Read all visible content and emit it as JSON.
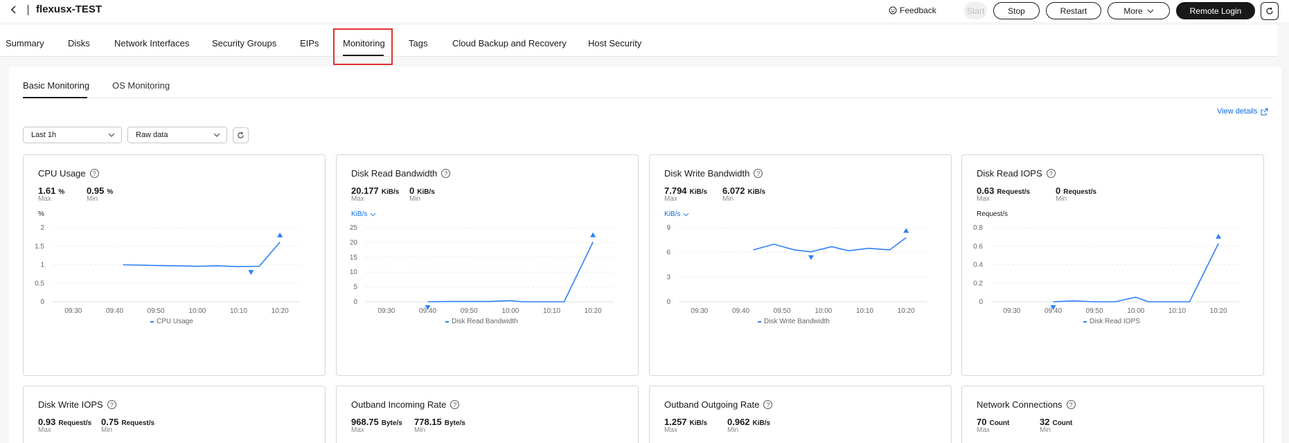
{
  "header": {
    "title": "flexusx-TEST",
    "feedback": "Feedback",
    "buttons": {
      "start": "Start",
      "stop": "Stop",
      "restart": "Restart",
      "more": "More",
      "remote_login": "Remote Login"
    }
  },
  "tabs": [
    "Summary",
    "Disks",
    "Network Interfaces",
    "Security Groups",
    "EIPs",
    "Monitoring",
    "Tags",
    "Cloud Backup and Recovery",
    "Host Security"
  ],
  "active_tab": "Monitoring",
  "subtabs": [
    "Basic Monitoring",
    "OS Monitoring"
  ],
  "view_details": "View details",
  "filters": {
    "range": "Last 1h",
    "mode": "Raw data"
  },
  "colors": {
    "accent": "#0d6ae1",
    "line": "#2d7ff9",
    "highlight": "#e23131"
  },
  "cards": [
    {
      "title": "CPU Usage",
      "max": "1.61",
      "max_unit": "%",
      "max_label": "Max",
      "min": "0.95",
      "min_unit": "%",
      "min_label": "Min",
      "unit": "%",
      "unit_dropdown": false,
      "legend": "CPU Usage"
    },
    {
      "title": "Disk Read Bandwidth",
      "max": "20.177",
      "max_unit": "KiB/s",
      "max_label": "Max",
      "min": "0",
      "min_unit": "KiB/s",
      "min_label": "Min",
      "unit": "KiB/s",
      "unit_dropdown": true,
      "legend": "Disk Read Bandwidth"
    },
    {
      "title": "Disk Write Bandwidth",
      "max": "7.794",
      "max_unit": "KiB/s",
      "max_label": "Max",
      "min": "6.072",
      "min_unit": "KiB/s",
      "min_label": "Min",
      "unit": "KiB/s",
      "unit_dropdown": true,
      "legend": "Disk Write Bandwidth"
    },
    {
      "title": "Disk Read IOPS",
      "max": "0.63",
      "max_unit": "Request/s",
      "max_label": "Max",
      "min": "0",
      "min_unit": "Request/s",
      "min_label": "Min",
      "unit": "Request/s",
      "unit_dropdown": false,
      "legend": "Disk Read IOPS"
    },
    {
      "title": "Disk Write IOPS",
      "max": "0.93",
      "max_unit": "Request/s",
      "max_label": "Max",
      "min": "0.75",
      "min_unit": "Request/s",
      "min_label": "Min"
    },
    {
      "title": "Outband Incoming Rate",
      "max": "968.75",
      "max_unit": "Byte/s",
      "max_label": "Max",
      "min": "778.15",
      "min_unit": "Byte/s",
      "min_label": "Min"
    },
    {
      "title": "Outband Outgoing Rate",
      "max": "1.257",
      "max_unit": "KiB/s",
      "max_label": "Max",
      "min": "0.962",
      "min_unit": "KiB/s",
      "min_label": "Min"
    },
    {
      "title": "Network Connections",
      "max": "70",
      "max_unit": "Count",
      "max_label": "Max",
      "min": "32",
      "min_unit": "Count",
      "min_label": "Min"
    }
  ],
  "chart_data": [
    {
      "type": "line",
      "title": "CPU Usage",
      "ylabel": "%",
      "x_ticks": [
        "09:30",
        "09:40",
        "09:50",
        "10:00",
        "10:10",
        "10:20"
      ],
      "y_ticks": [
        "0",
        "0.5",
        "1",
        "1.5",
        "2"
      ],
      "ylim": [
        0,
        2
      ],
      "series": [
        {
          "name": "CPU Usage",
          "x": [
            "09:42",
            "09:50",
            "09:55",
            "10:00",
            "10:05",
            "10:10",
            "10:15",
            "10:20"
          ],
          "values": [
            1.0,
            0.98,
            0.97,
            0.96,
            0.97,
            0.95,
            0.96,
            1.61
          ]
        }
      ],
      "markers": {
        "max": {
          "x": "10:20",
          "y": 1.61
        },
        "min": {
          "x": "10:13",
          "y": 0.95
        }
      }
    },
    {
      "type": "line",
      "title": "Disk Read Bandwidth",
      "ylabel": "KiB/s",
      "x_ticks": [
        "09:30",
        "09:40",
        "09:50",
        "10:00",
        "10:10",
        "10:20"
      ],
      "y_ticks": [
        "0",
        "5",
        "10",
        "15",
        "20",
        "25"
      ],
      "ylim": [
        0,
        25
      ],
      "series": [
        {
          "name": "Disk Read Bandwidth",
          "x": [
            "09:40",
            "09:45",
            "09:50",
            "09:55",
            "10:00",
            "10:03",
            "10:08",
            "10:13",
            "10:20"
          ],
          "values": [
            0.0,
            0.1,
            0.1,
            0.1,
            0.4,
            0.0,
            0.0,
            0.0,
            20.177
          ]
        }
      ],
      "markers": {
        "max": {
          "x": "10:20",
          "y": 20.177
        },
        "min": {
          "x": "09:40",
          "y": 0
        }
      }
    },
    {
      "type": "line",
      "title": "Disk Write Bandwidth",
      "ylabel": "KiB/s",
      "x_ticks": [
        "09:30",
        "09:40",
        "09:50",
        "10:00",
        "10:10",
        "10:20"
      ],
      "y_ticks": [
        "0",
        "3",
        "6",
        "9"
      ],
      "ylim": [
        0,
        9
      ],
      "series": [
        {
          "name": "Disk Write Bandwidth",
          "x": [
            "09:43",
            "09:48",
            "09:53",
            "09:57",
            "10:02",
            "10:06",
            "10:11",
            "10:16",
            "10:20"
          ],
          "values": [
            6.3,
            7.0,
            6.3,
            6.072,
            6.7,
            6.2,
            6.5,
            6.3,
            7.794
          ]
        }
      ],
      "markers": {
        "max": {
          "x": "10:20",
          "y": 7.794
        },
        "min": {
          "x": "09:57",
          "y": 6.072
        }
      }
    },
    {
      "type": "line",
      "title": "Disk Read IOPS",
      "ylabel": "Request/s",
      "x_ticks": [
        "09:30",
        "09:40",
        "09:50",
        "10:00",
        "10:10",
        "10:20"
      ],
      "y_ticks": [
        "0",
        "0.2",
        "0.4",
        "0.6",
        "0.8"
      ],
      "ylim": [
        0,
        0.8
      ],
      "series": [
        {
          "name": "Disk Read IOPS",
          "x": [
            "09:40",
            "09:45",
            "09:50",
            "09:55",
            "10:00",
            "10:03",
            "10:08",
            "10:13",
            "10:20"
          ],
          "values": [
            0.0,
            0.01,
            0.0,
            0.0,
            0.05,
            0.0,
            0.0,
            0.0,
            0.63
          ]
        }
      ],
      "markers": {
        "max": {
          "x": "10:20",
          "y": 0.63
        },
        "min": {
          "x": "09:40",
          "y": 0
        }
      }
    }
  ]
}
